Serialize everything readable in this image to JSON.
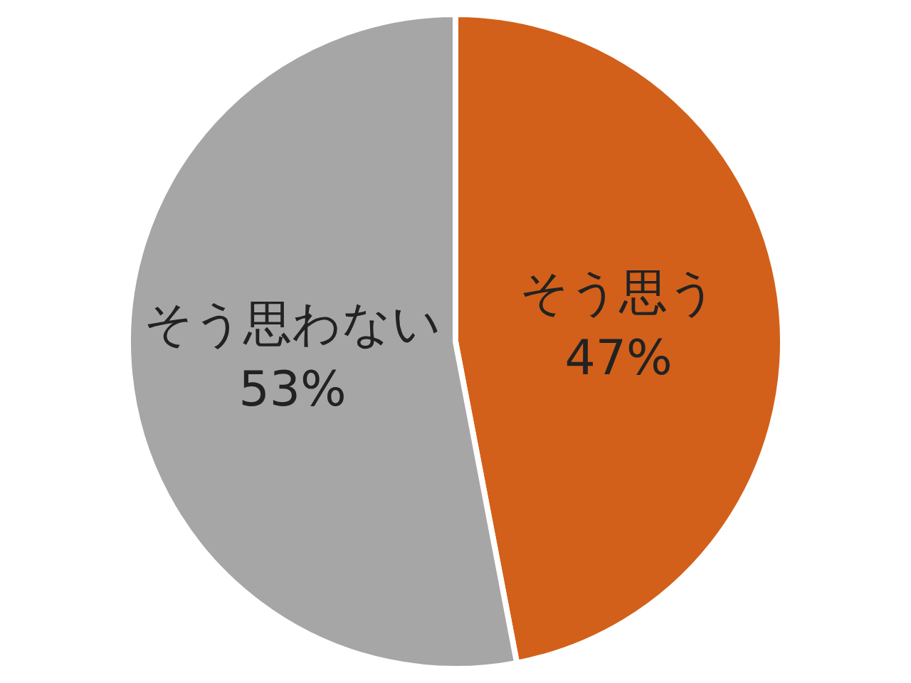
{
  "chart_data": {
    "type": "pie",
    "categories": [
      "そう思う",
      "そう思わない"
    ],
    "values": [
      47,
      53
    ],
    "colors": [
      "#d2601a",
      "#a6a6a6"
    ],
    "value_labels": [
      "47%",
      "53%"
    ]
  }
}
